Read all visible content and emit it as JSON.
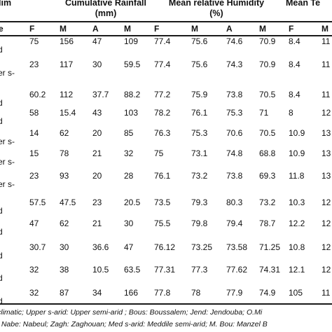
{
  "header": {
    "clim": "lim",
    "rainfall": "Cumulative Rainfall",
    "rainfall_unit": "(mm)",
    "humidity": "Mean relative Humidity",
    "humidity_unit": "(%)",
    "temperature": "Mean Te"
  },
  "subheader": {
    "first": "e",
    "months": [
      "F",
      "M",
      "A",
      "M",
      "F",
      "M",
      "A",
      "M",
      "F",
      "M"
    ]
  },
  "rows": [
    {
      "label": [
        "d"
      ],
      "values": [
        "75",
        "156",
        "47",
        "109",
        "77.4",
        "75.6",
        "74.6",
        "70.9",
        "8.4",
        "11"
      ]
    },
    {
      "label": [
        "er s-"
      ],
      "values": [
        "23",
        "117",
        "30",
        "59.5",
        "77.4",
        "75.6",
        "74.3",
        "70.9",
        "8.4",
        "11"
      ]
    },
    {
      "label": [
        "d"
      ],
      "values": [
        "60.2",
        "112",
        "37.7",
        "88.2",
        "77.2",
        "75.9",
        "73.8",
        "70.5",
        "8.4",
        "11"
      ]
    },
    {
      "label": [
        "d"
      ],
      "values": [
        "58",
        "15.4",
        "43",
        "103",
        "78.2",
        "76.1",
        "75.3",
        "71",
        "8",
        "12"
      ]
    },
    {
      "label": [
        "er s-"
      ],
      "values": [
        "14",
        "62",
        "20",
        "85",
        "76.3",
        "75.3",
        "70.6",
        "70.5",
        "10.9",
        "13"
      ]
    },
    {
      "label": [
        "er s-"
      ],
      "values": [
        "15",
        "78",
        "21",
        "32",
        "75",
        "73.1",
        "74.8",
        "68.8",
        "10.9",
        "13"
      ]
    },
    {
      "label": [
        "er s-"
      ],
      "values": [
        "23",
        "93",
        "20",
        "28",
        "76.1",
        "73.2",
        "73.8",
        "69.3",
        "11.8",
        "13"
      ]
    },
    {
      "label": [
        "d"
      ],
      "values": [
        "57.5",
        "47.5",
        "23",
        "20.5",
        "73.5",
        "79.3",
        "80.3",
        "73.2",
        "10.3",
        "12"
      ]
    },
    {
      "label": [
        "d"
      ],
      "values": [
        "47",
        "62",
        "21",
        "30",
        "75.5",
        "79.8",
        "79.4",
        "78.7",
        "12.2",
        "12"
      ]
    },
    {
      "label": [
        "d"
      ],
      "values": [
        "30.7",
        "30",
        "36.6",
        "47",
        "76.12",
        "73.25",
        "73.58",
        "71.25",
        "10.8",
        "12"
      ]
    },
    {
      "label": [
        "d"
      ],
      "values": [
        "32",
        "38",
        "10.5",
        "63.5",
        "77.31",
        "77.3",
        "77.62",
        "74.31",
        "12.1",
        "12"
      ]
    },
    {
      "label": [
        "d"
      ],
      "values": [
        "32",
        "87",
        "34",
        "166",
        "77.8",
        "78",
        "77.9",
        "74.9",
        "105",
        "11"
      ]
    }
  ],
  "footnotes": [
    "climatic; Upper s-arid: Upper semi-arid ; Bous: Boussalem; Jend: Jendouba; O.Mi",
    "; Nabe: Nabeul; Zagh: Zaghouan; Med s-arid: Meddile semi-arid; M. Bou: Manzel B"
  ]
}
